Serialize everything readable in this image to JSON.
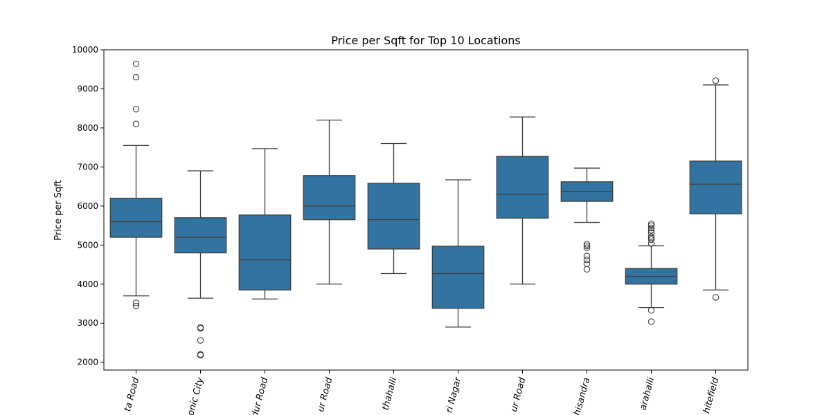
{
  "chart_data": {
    "type": "box",
    "title": "Price per Sqft for Top 10 Locations",
    "xlabel": "",
    "ylabel": "Price per Sqft",
    "ylim": [
      1800,
      10000
    ],
    "yticks": [
      2000,
      3000,
      4000,
      5000,
      6000,
      7000,
      8000,
      9000,
      10000
    ],
    "grid": false,
    "box_color": "#3274a1",
    "line_color": "#3d3d3d",
    "categories": [
      "ta Road",
      "onic City",
      "dur Road",
      "ur Road",
      "thahalli",
      "ri Nagar",
      "ur  Road",
      "hisandra",
      "arahalli",
      "hitefield"
    ],
    "boxes": [
      {
        "whisker_low": 3700,
        "q1": 5200,
        "median": 5600,
        "q3": 6200,
        "whisker_high": 7550,
        "outliers": [
          3440,
          3520,
          8100,
          8480,
          9300,
          9640
        ]
      },
      {
        "whisker_low": 3640,
        "q1": 4800,
        "median": 5200,
        "q3": 5700,
        "whisker_high": 6900,
        "outliers": [
          2180,
          2200,
          2560,
          2870,
          2890
        ]
      },
      {
        "whisker_low": 3620,
        "q1": 3850,
        "median": 4620,
        "q3": 5770,
        "whisker_high": 7470,
        "outliers": []
      },
      {
        "whisker_low": 4000,
        "q1": 5650,
        "median": 6000,
        "q3": 6780,
        "whisker_high": 8200,
        "outliers": []
      },
      {
        "whisker_low": 4270,
        "q1": 4900,
        "median": 5650,
        "q3": 6580,
        "whisker_high": 7600,
        "outliers": []
      },
      {
        "whisker_low": 2900,
        "q1": 3380,
        "median": 4270,
        "q3": 4970,
        "whisker_high": 6670,
        "outliers": []
      },
      {
        "whisker_low": 4000,
        "q1": 5690,
        "median": 6300,
        "q3": 7270,
        "whisker_high": 8280,
        "outliers": []
      },
      {
        "whisker_low": 5580,
        "q1": 6120,
        "median": 6370,
        "q3": 6620,
        "whisker_high": 6970,
        "outliers": [
          4380,
          4520,
          4620,
          4720,
          4930,
          4980,
          5020
        ]
      },
      {
        "whisker_low": 3400,
        "q1": 4000,
        "median": 4200,
        "q3": 4400,
        "whisker_high": 4980,
        "outliers": [
          3040,
          3330,
          5040,
          5140,
          5180,
          5220,
          5320,
          5380,
          5440,
          5500,
          5540
        ]
      },
      {
        "whisker_low": 3850,
        "q1": 5800,
        "median": 6560,
        "q3": 7150,
        "whisker_high": 9100,
        "outliers": [
          3660,
          9210
        ]
      }
    ]
  }
}
